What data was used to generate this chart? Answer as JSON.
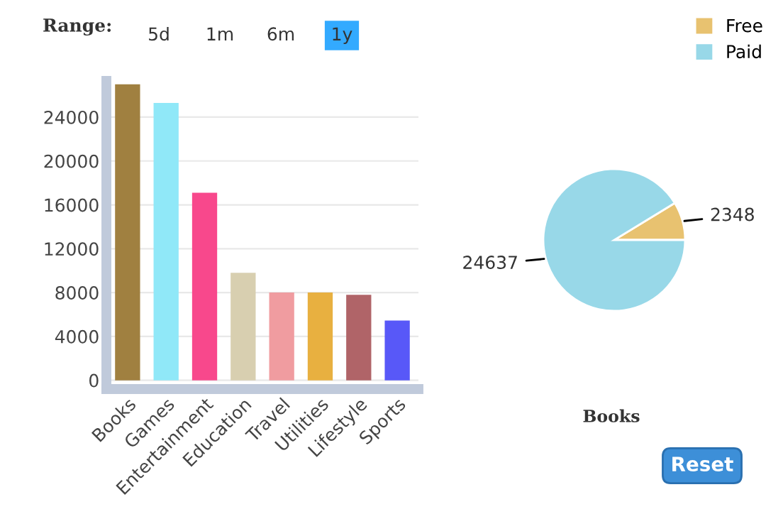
{
  "chart_data": [
    {
      "type": "bar",
      "categories": [
        "Books",
        "Games",
        "Entertainment",
        "Education",
        "Travel",
        "Utilities",
        "Lifestyle",
        "Sports"
      ],
      "values": [
        26985,
        25300,
        17100,
        9800,
        8000,
        8000,
        7800,
        5450
      ],
      "colors": [
        "#a08040",
        "#90e8f8",
        "#f8488c",
        "#d8cfb0",
        "#f09ca0",
        "#e8b040",
        "#b06468",
        "#5858f8"
      ],
      "ylim": [
        -800,
        27300
      ],
      "yticks": [
        0,
        4000,
        8000,
        12000,
        16000,
        20000,
        24000
      ],
      "grid": "y",
      "annotations": [
        "Range:",
        "5d",
        "1m",
        "6m",
        "1y",
        "Reset"
      ]
    },
    {
      "type": "pie",
      "title": "Books",
      "categories": [
        "Free",
        "Paid"
      ],
      "values": [
        2348,
        24637
      ],
      "colors": [
        "#e8c270",
        "#98d8e8"
      ],
      "data_labels": true,
      "legend": "top right"
    }
  ]
}
